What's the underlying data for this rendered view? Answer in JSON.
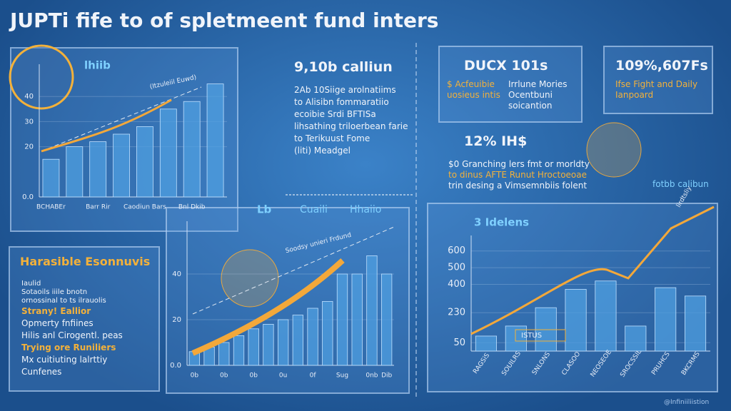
{
  "header": {
    "title": "JUPTi fife to of spletmeent fund inters"
  },
  "blocks": {
    "center_top": {
      "heading": "9,10b calliun",
      "lines": [
        "2Ab 10Siige arolnatiims",
        "to Alisibn fommaratiio",
        "ecoibie Srdi BFTISa",
        "lihsathing triloerbean farie",
        "to Terikuust Fome",
        "(liti) Meadgel"
      ]
    },
    "box1": {
      "heading": "DUCX 101s",
      "left": [
        "$ Acfeuibie",
        "uosieus intis"
      ],
      "right": [
        "Irrlune Mories",
        "Ocentbuni",
        "soicantion"
      ]
    },
    "box2": {
      "heading": "109%,607Fs",
      "lines": [
        "Ifse Fight and Daily",
        "Ianpoard"
      ]
    },
    "mid_right": {
      "heading": "12% IH$",
      "lines": [
        "$0 Granching lers fmt or morldty",
        "to dinus AFTE Runut Hroctoeoae",
        "trin desing a Vimsemnbiis folent"
      ]
    },
    "right_label": "fotbb calibun",
    "left_panel": {
      "heading": "Harasible Esonnuvis",
      "lines": [
        "Iaulid",
        "Sotaoils iiile bnotn",
        "ornossinal to ts ilrauolis",
        "Strany! Eallior",
        "Opmerty fnfiines",
        "Hilis anl Cirogentl. peas",
        "Trying ore Runiliers",
        "Mx cuitiuting lalrttiy",
        "Cunfenes"
      ]
    },
    "watermark": "@Infiniiliistion"
  },
  "chart_data": [
    {
      "type": "bar",
      "title": "lhiib",
      "annotation": "(Itzuleiil Euwd)",
      "color": "#4f9fe0",
      "categories": [
        "BCHABEr",
        null,
        "Barr Rir",
        null,
        "Caodiun Bars",
        null,
        "Bnl Dkib",
        null
      ],
      "values": [
        15,
        20,
        22,
        25,
        28,
        35,
        38,
        45
      ],
      "ylim": [
        0,
        50
      ],
      "yticks": [
        {
          "value": 0,
          "label": "0.0"
        },
        20,
        30,
        40
      ]
    },
    {
      "type": "bar",
      "title": "Lb",
      "subtitles": [
        "Cuaili",
        "Hhaiio"
      ],
      "annotation": "Soodsy unieri Frdund",
      "color": "#4f9fe0",
      "categories": [
        "0b",
        null,
        "0b",
        null,
        "0b",
        null,
        "0u",
        null,
        "0f",
        null,
        "Sug",
        null,
        "0nb",
        "Dib"
      ],
      "values": [
        6,
        8,
        10,
        13,
        16,
        18,
        20,
        22,
        25,
        28,
        40,
        40,
        48,
        40
      ],
      "ylim": [
        0,
        60
      ],
      "yticks": [
        {
          "value": 0,
          "label": "0.0"
        },
        20,
        40
      ]
    },
    {
      "type": "bar",
      "title": "3 Idelens",
      "annotation": "lirdtsliy",
      "badge": "ISTUS",
      "color": "#4f9fe0",
      "categories": [
        "RAGSiS",
        "SOUILRS",
        "SNLONS",
        "CLASOO",
        "NEOSEOE",
        "SROCSSIL",
        "PRUHCS",
        "BKCRMS"
      ],
      "values": [
        90,
        150,
        260,
        370,
        420,
        150,
        380,
        330
      ],
      "ylim": [
        0,
        650
      ],
      "yticks": [
        50,
        230,
        400,
        500,
        600
      ]
    }
  ]
}
